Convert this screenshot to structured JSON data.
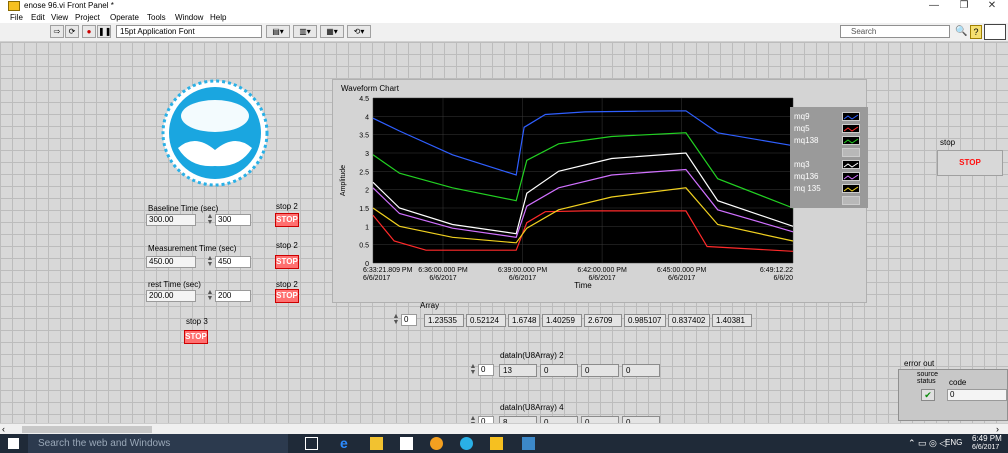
{
  "window": {
    "title": "enose 96.vi Front Panel *",
    "minimize": "—",
    "restore": "❐",
    "close": "✕"
  },
  "menu": [
    "File",
    "Edit",
    "View",
    "Project",
    "Operate",
    "Tools",
    "Window",
    "Help"
  ],
  "toolbar": {
    "font": "15pt Application Font",
    "search_placeholder": "Search"
  },
  "panel": {
    "baseline": {
      "label": "Baseline Time (sec)",
      "value": "300.00",
      "control": "300",
      "stop_label": "stop 2",
      "stop_text": "STOP"
    },
    "measurement": {
      "label": "Measurement Time (sec)",
      "value": "450.00",
      "control": "450",
      "stop_label": "stop 2",
      "stop_text": "STOP"
    },
    "rest": {
      "label": "rest Time (sec)",
      "value": "200.00",
      "control": "200",
      "stop_label": "stop 2",
      "stop_text": "STOP"
    },
    "stop3": {
      "label": "stop 3",
      "text": "STOP"
    },
    "stop_main": {
      "label": "stop",
      "text": "STOP"
    },
    "array": {
      "label": "Array",
      "index": "0",
      "values": [
        "1.23535",
        "0.52124",
        "1.6748",
        "1.40259",
        "2.6709",
        "0.985107",
        "0.837402",
        "1.40381"
      ]
    },
    "datain2": {
      "label": "dataIn(U8Array) 2",
      "index": "0",
      "values": [
        "13",
        "0",
        "0",
        "0"
      ]
    },
    "datain4": {
      "label": "dataIn(U8Array) 4",
      "index": "0",
      "values": [
        "8",
        "0",
        "0",
        "0"
      ]
    },
    "error_out": {
      "label": "error out",
      "status_label": "status",
      "source_label": "source",
      "code_label": "code",
      "code_value": "0",
      "status_check": "✔"
    }
  },
  "taskbar": {
    "search": "Search the web and Windows",
    "time": "6:49 PM",
    "date": "6/6/2017",
    "lang": "ENG"
  },
  "colors": {
    "plot_bg": "#000000",
    "grid": "#3a3a3a"
  },
  "chart_data": {
    "type": "line",
    "title": "Waveform Chart",
    "xlabel": "Time",
    "ylabel": "Amplitude",
    "ylim": [
      0,
      4.5
    ],
    "yticks": [
      "0",
      "0.5",
      "1",
      "1.5",
      "2",
      "2.5",
      "3",
      "3.5",
      "4",
      "4.5"
    ],
    "xtick_labels": [
      [
        "6:33:21.809 PM",
        "6/6/2017"
      ],
      [
        "6:36:00.000 PM",
        "6/6/2017"
      ],
      [
        "6:39:00.000 PM",
        "6/6/2017"
      ],
      [
        "6:42:00.000 PM",
        "6/6/2017"
      ],
      [
        "6:45:00.000 PM",
        "6/6/2017"
      ],
      [
        "6:49:12.22",
        "6/6/20"
      ]
    ],
    "xtick_minutes": [
      0,
      2.64,
      5.64,
      8.64,
      11.64,
      15.84
    ],
    "xlim_minutes": [
      0,
      15.84
    ],
    "grid": true,
    "legend_placement": "right",
    "series": [
      {
        "name": "mq9",
        "color": "#2f5fff",
        "x": [
          0,
          1,
          3,
          5.4,
          5.7,
          6.5,
          8,
          10,
          11.8,
          13,
          15.84
        ],
        "y": [
          3.95,
          3.6,
          2.95,
          2.4,
          3.7,
          4.05,
          4.12,
          4.14,
          4.15,
          3.55,
          3.2
        ]
      },
      {
        "name": "mq5",
        "color": "#ff2a2a",
        "x": [
          0,
          0.8,
          2,
          5.4,
          5.8,
          6.5,
          8,
          10,
          11.8,
          12.6,
          15.84
        ],
        "y": [
          1.3,
          0.6,
          0.35,
          0.35,
          1.1,
          1.4,
          1.42,
          1.42,
          1.42,
          0.45,
          0.32
        ]
      },
      {
        "name": "mq138",
        "color": "#22d022",
        "x": [
          0,
          1,
          3,
          5.4,
          5.8,
          7,
          9,
          11.8,
          13,
          15.84
        ],
        "y": [
          2.95,
          2.45,
          2.05,
          1.7,
          2.8,
          3.25,
          3.45,
          3.55,
          2.3,
          1.5
        ]
      },
      {
        "name": "mq3",
        "color": "#ffffff",
        "x": [
          0,
          1,
          3,
          5.4,
          5.8,
          7,
          9,
          11.8,
          13,
          15.84
        ],
        "y": [
          2.2,
          1.5,
          1.05,
          0.8,
          1.9,
          2.5,
          2.85,
          3.0,
          1.7,
          1.0
        ]
      },
      {
        "name": "mq136",
        "color": "#d070ff",
        "x": [
          0,
          1,
          3,
          5.4,
          5.8,
          7,
          9,
          11.8,
          13,
          15.84
        ],
        "y": [
          2.05,
          1.35,
          0.95,
          0.7,
          1.55,
          2.05,
          2.4,
          2.55,
          1.45,
          0.85
        ]
      },
      {
        "name": "mq 135",
        "color": "#f0d020",
        "x": [
          0,
          1,
          3,
          5.4,
          5.8,
          7,
          9,
          11.8,
          13,
          15.84
        ],
        "y": [
          1.5,
          1.0,
          0.7,
          0.55,
          0.95,
          1.45,
          1.8,
          2.05,
          1.05,
          0.6
        ]
      }
    ]
  }
}
